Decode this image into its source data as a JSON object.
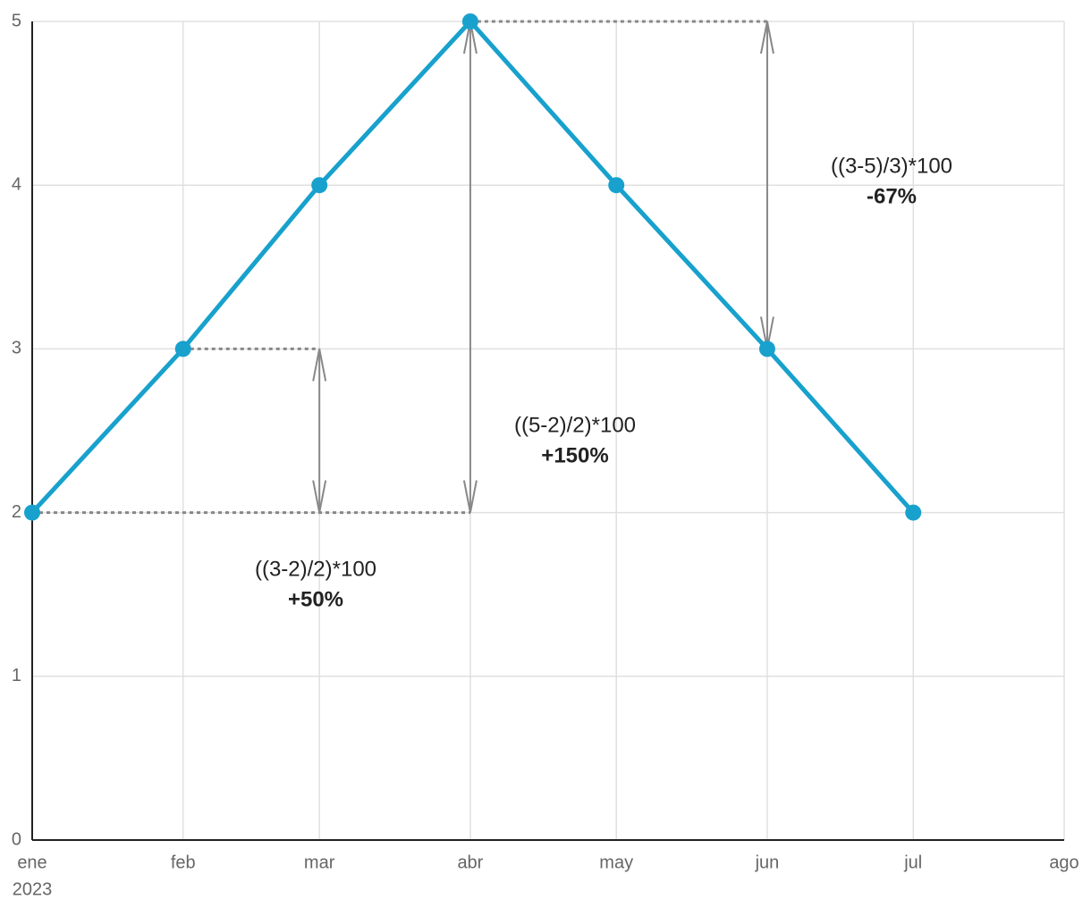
{
  "chart_data": {
    "type": "line",
    "x": [
      "2023-01",
      "2023-02",
      "2023-03",
      "2023-04",
      "2023-05",
      "2023-06",
      "2023-07"
    ],
    "series": [
      {
        "name": null,
        "color": "#18a1cd",
        "values": [
          2,
          3,
          4,
          5,
          4,
          3,
          2
        ]
      }
    ],
    "xlim": [
      "2023-01",
      "2023-08"
    ],
    "xticks": [
      {
        "value": "2023-01",
        "label": "ene",
        "sublabel": "2023"
      },
      {
        "value": "2023-02",
        "label": "feb"
      },
      {
        "value": "2023-03",
        "label": "mar"
      },
      {
        "value": "2023-04",
        "label": "abr"
      },
      {
        "value": "2023-05",
        "label": "may"
      },
      {
        "value": "2023-06",
        "label": "jun"
      },
      {
        "value": "2023-07",
        "label": "jul"
      },
      {
        "value": "2023-08",
        "label": "ago"
      }
    ],
    "ylim": [
      0,
      5
    ],
    "yticks": [
      0,
      1,
      2,
      3,
      4,
      5
    ],
    "grid": true,
    "annotations": [
      {
        "formula": "((3-2)/2)*100",
        "result": "+50%"
      },
      {
        "formula": "((5-2)/2)*100",
        "result": "+150%"
      },
      {
        "formula": "((3-5)/3)*100",
        "result": "-67%"
      }
    ]
  }
}
